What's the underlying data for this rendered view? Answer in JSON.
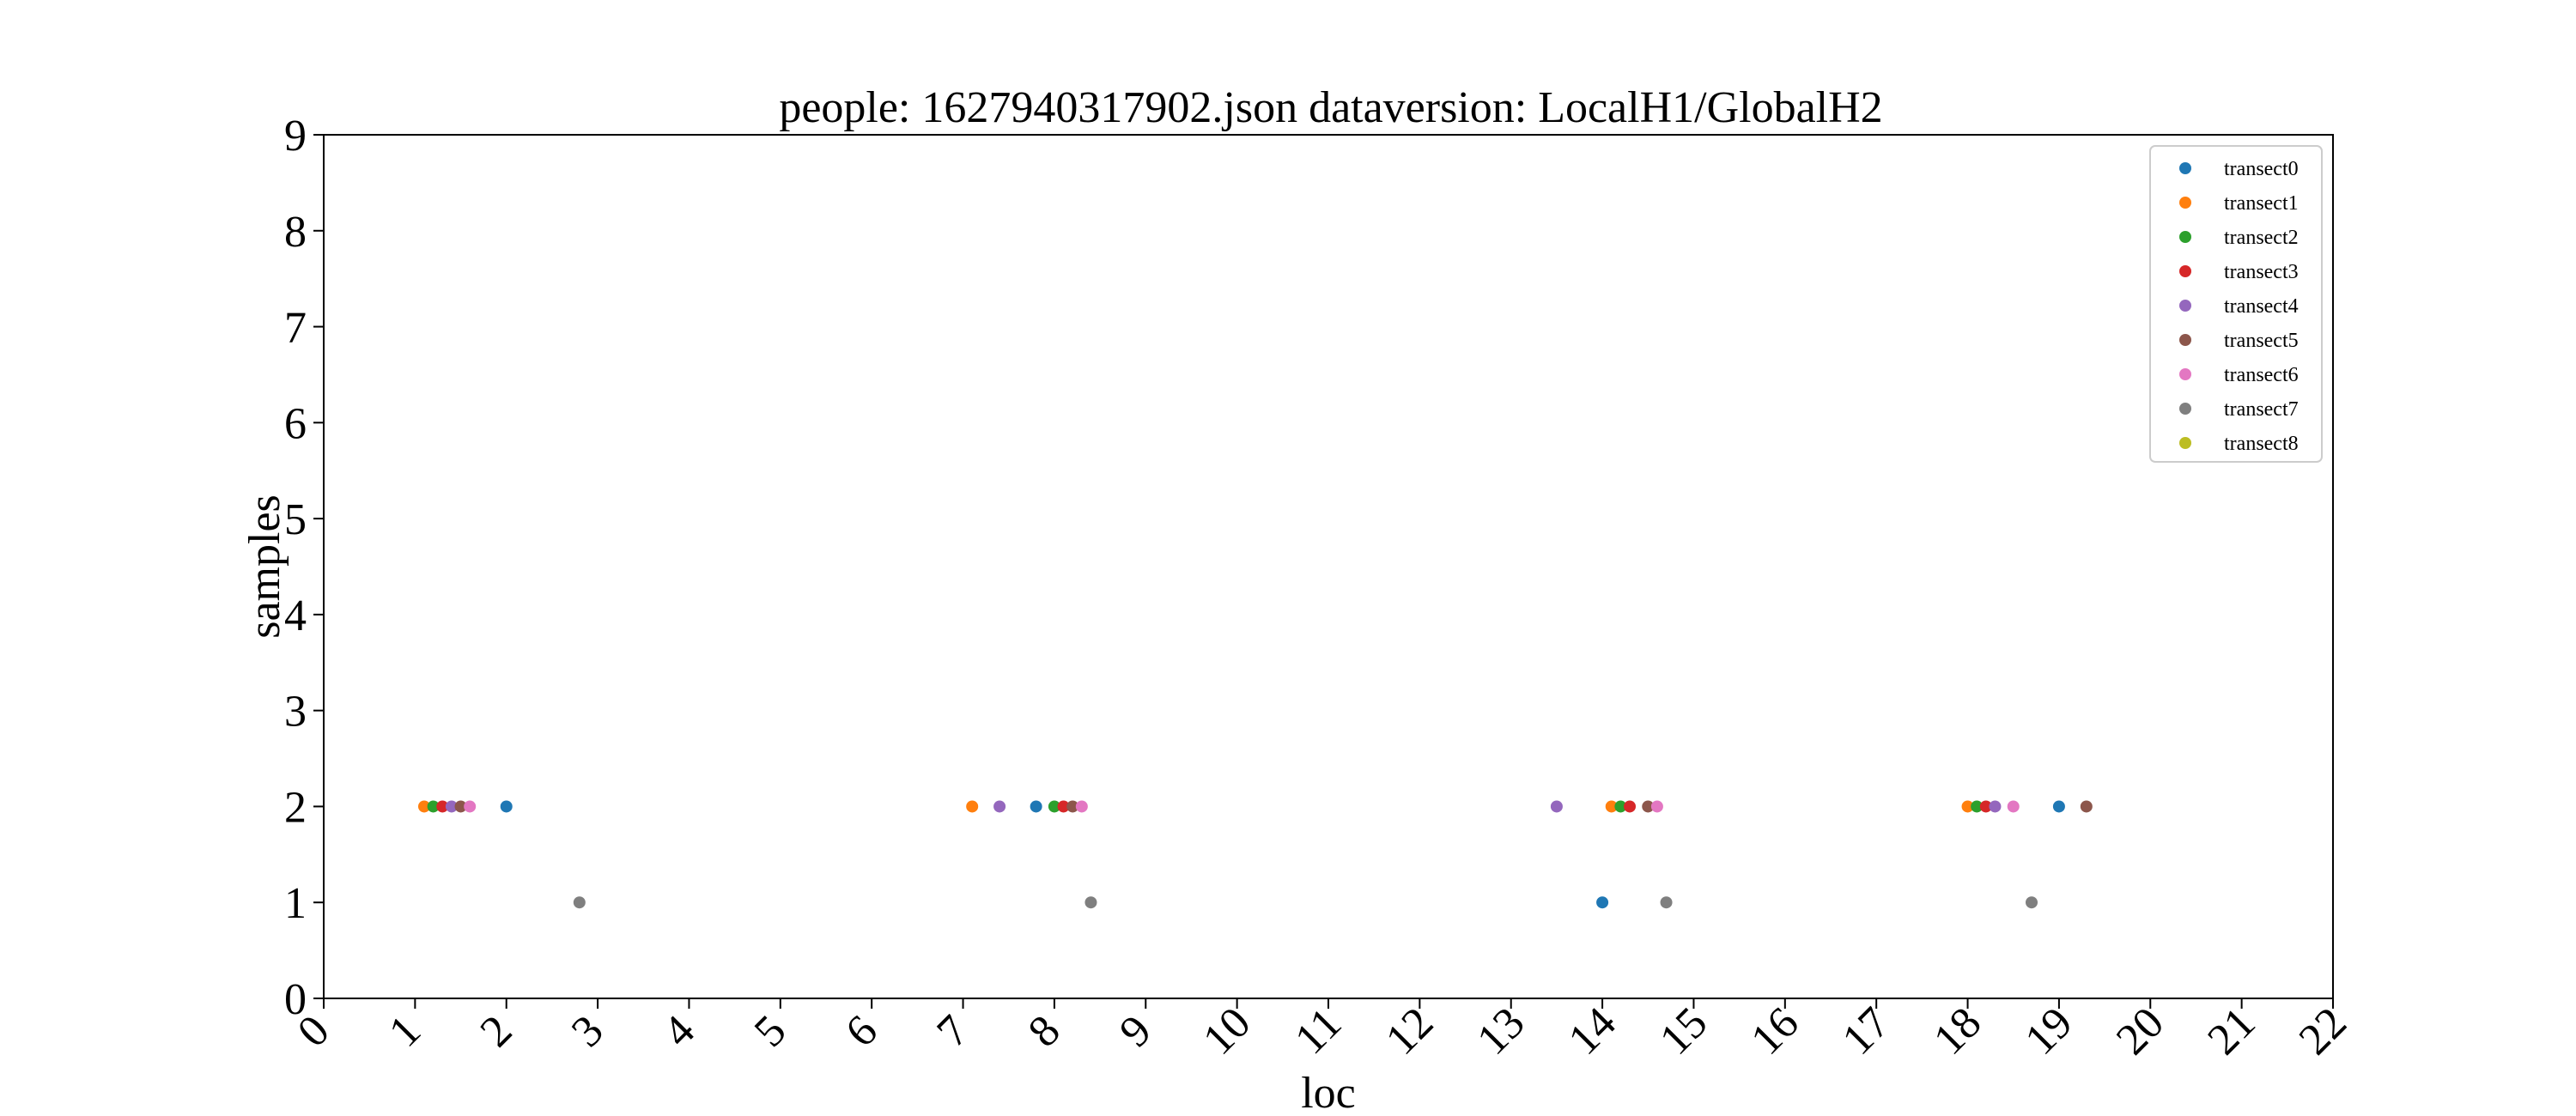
{
  "chart_data": {
    "type": "scatter",
    "title": "people: 1627940317902.json dataversion: LocalH1/GlobalH2",
    "xlabel": "loc",
    "ylabel": "samples",
    "xlim": [
      0,
      22
    ],
    "ylim": [
      0,
      9
    ],
    "xticks": [
      "0",
      "1",
      "2",
      "3",
      "4",
      "5",
      "6",
      "7",
      "8",
      "9",
      "10",
      "11",
      "12",
      "13",
      "14",
      "15",
      "16",
      "17",
      "18",
      "19",
      "20",
      "21",
      "22"
    ],
    "yticks": [
      "0",
      "1",
      "2",
      "3",
      "4",
      "5",
      "6",
      "7",
      "8",
      "9"
    ],
    "grid": false,
    "legend_position": "top-right",
    "series": [
      {
        "name": "transect0",
        "color": "#1f77b4",
        "points": [
          [
            2.0,
            2
          ],
          [
            7.8,
            2
          ],
          [
            14.0,
            1
          ],
          [
            19.0,
            2
          ]
        ]
      },
      {
        "name": "transect1",
        "color": "#ff7f0e",
        "points": [
          [
            1.1,
            2
          ],
          [
            7.1,
            2
          ],
          [
            14.1,
            2
          ],
          [
            18.0,
            2
          ]
        ]
      },
      {
        "name": "transect2",
        "color": "#2ca02c",
        "points": [
          [
            1.2,
            2
          ],
          [
            8.0,
            2
          ],
          [
            14.2,
            2
          ],
          [
            18.1,
            2
          ]
        ]
      },
      {
        "name": "transect3",
        "color": "#d62728",
        "points": [
          [
            1.3,
            2
          ],
          [
            8.1,
            2
          ],
          [
            14.3,
            2
          ],
          [
            18.2,
            2
          ]
        ]
      },
      {
        "name": "transect4",
        "color": "#9467bd",
        "points": [
          [
            1.4,
            2
          ],
          [
            7.4,
            2
          ],
          [
            13.5,
            2
          ],
          [
            18.3,
            2
          ]
        ]
      },
      {
        "name": "transect5",
        "color": "#8c564b",
        "points": [
          [
            1.5,
            2
          ],
          [
            8.2,
            2
          ],
          [
            14.5,
            2
          ],
          [
            19.3,
            2
          ]
        ]
      },
      {
        "name": "transect6",
        "color": "#e377c2",
        "points": [
          [
            1.6,
            2
          ],
          [
            8.3,
            2
          ],
          [
            14.6,
            2
          ],
          [
            18.5,
            2
          ]
        ]
      },
      {
        "name": "transect7",
        "color": "#7f7f7f",
        "points": [
          [
            2.8,
            1
          ],
          [
            8.4,
            1
          ],
          [
            14.7,
            1
          ],
          [
            18.7,
            1
          ]
        ]
      },
      {
        "name": "transect8",
        "color": "#bcbd22",
        "points": []
      }
    ]
  }
}
